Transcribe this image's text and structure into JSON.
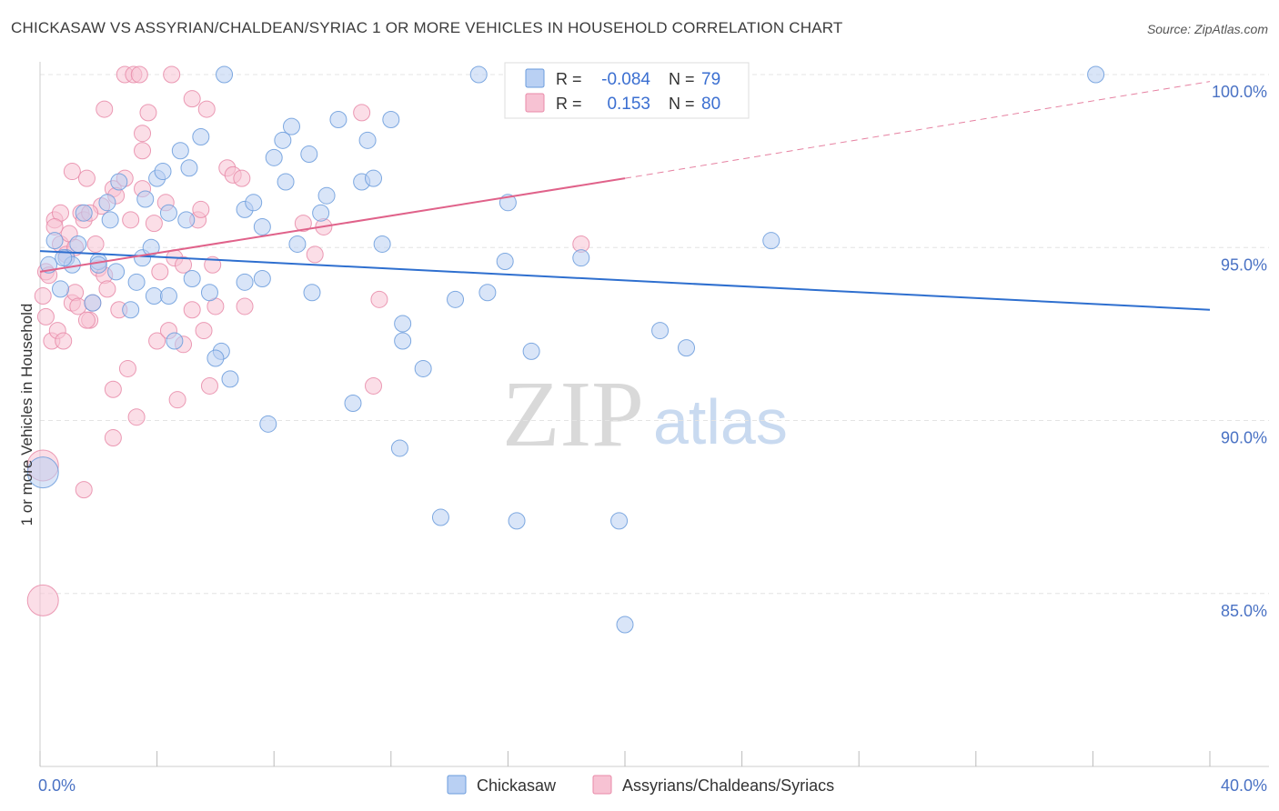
{
  "title": "CHICKASAW VS ASSYRIAN/CHALDEAN/SYRIAC 1 OR MORE VEHICLES IN HOUSEHOLD CORRELATION CHART",
  "source": "Source: ZipAtlas.com",
  "watermark": {
    "zip": "ZIP",
    "atlas": "atlas"
  },
  "legend_top": {
    "rows": [
      {
        "r_label": "R =",
        "r_value": "-0.084",
        "n_label": "N =",
        "n_value": "79",
        "color": "#6a9bdc",
        "fill": "#b9d0f3"
      },
      {
        "r_label": "R =",
        "r_value": "0.153",
        "n_label": "N =",
        "n_value": "80",
        "color": "#e88aa8",
        "fill": "#f7c2d3"
      }
    ]
  },
  "legend_bottom": {
    "items": [
      {
        "label": "Chickasaw",
        "color": "#6a9bdc",
        "fill": "#b9d0f3"
      },
      {
        "label": "Assyrians/Chaldeans/Syriacs",
        "color": "#e88aa8",
        "fill": "#f7c2d3"
      }
    ]
  },
  "chart_data": {
    "type": "scatter",
    "title": "CHICKASAW VS ASSYRIAN/CHALDEAN/SYRIAC 1 OR MORE VEHICLES IN HOUSEHOLD CORRELATION CHART",
    "xlabel": "",
    "ylabel": "1 or more Vehicles in Household",
    "xlim": [
      0,
      40
    ],
    "ylim": [
      80,
      100.5
    ],
    "x_tick_labels": [
      "0.0%",
      "40.0%"
    ],
    "y_ticks": [
      85,
      90,
      95,
      100
    ],
    "y_tick_labels": [
      "85.0%",
      "90.0%",
      "95.0%",
      "100.0%"
    ],
    "grid": true,
    "legend_position": "top-center",
    "series": [
      {
        "name": "Chickasaw",
        "color": "#6a9bdc",
        "fill": "#b9d0f3",
        "trend": {
          "x": [
            0,
            40
          ],
          "y": [
            94.9,
            93.2
          ],
          "color": "#2e6fcf"
        },
        "points": [
          [
            0.3,
            94.5
          ],
          [
            0.5,
            95.2
          ],
          [
            0.7,
            93.8
          ],
          [
            0.9,
            94.7
          ],
          [
            1.1,
            94.5
          ],
          [
            1.3,
            95.1
          ],
          [
            1.5,
            96.0
          ],
          [
            1.8,
            93.4
          ],
          [
            2.0,
            94.6
          ],
          [
            2.3,
            96.3
          ],
          [
            2.4,
            95.8
          ],
          [
            2.6,
            94.3
          ],
          [
            2.7,
            96.9
          ],
          [
            3.1,
            93.2
          ],
          [
            3.3,
            94.0
          ],
          [
            3.5,
            94.7
          ],
          [
            3.6,
            96.4
          ],
          [
            3.9,
            93.6
          ],
          [
            4.0,
            97.0
          ],
          [
            4.2,
            97.2
          ],
          [
            4.4,
            96.0
          ],
          [
            4.6,
            92.3
          ],
          [
            4.8,
            97.8
          ],
          [
            5.0,
            95.8
          ],
          [
            5.1,
            97.3
          ],
          [
            5.2,
            94.1
          ],
          [
            5.5,
            98.2
          ],
          [
            5.8,
            93.7
          ],
          [
            6.2,
            92.0
          ],
          [
            6.3,
            100.0
          ],
          [
            6.5,
            91.2
          ],
          [
            7.0,
            96.1
          ],
          [
            7.0,
            94.0
          ],
          [
            7.3,
            96.3
          ],
          [
            7.6,
            95.6
          ],
          [
            7.8,
            89.9
          ],
          [
            8.0,
            97.6
          ],
          [
            8.3,
            98.1
          ],
          [
            8.4,
            96.9
          ],
          [
            8.6,
            98.5
          ],
          [
            8.8,
            95.1
          ],
          [
            9.2,
            97.7
          ],
          [
            9.3,
            93.7
          ],
          [
            9.6,
            96.0
          ],
          [
            9.8,
            96.5
          ],
          [
            10.2,
            98.7
          ],
          [
            10.7,
            90.5
          ],
          [
            11.0,
            96.9
          ],
          [
            11.2,
            98.1
          ],
          [
            11.4,
            97.0
          ],
          [
            11.7,
            95.1
          ],
          [
            12.0,
            98.7
          ],
          [
            12.3,
            89.2
          ],
          [
            12.4,
            92.8
          ],
          [
            12.4,
            92.3
          ],
          [
            13.1,
            91.5
          ],
          [
            13.7,
            87.2
          ],
          [
            14.2,
            93.5
          ],
          [
            15.0,
            100.0
          ],
          [
            15.3,
            93.7
          ],
          [
            15.9,
            94.6
          ],
          [
            16.0,
            96.3
          ],
          [
            16.3,
            87.1
          ],
          [
            16.8,
            92.0
          ],
          [
            18.5,
            94.7
          ],
          [
            18.5,
            100.0
          ],
          [
            19.8,
            87.1
          ],
          [
            20.0,
            84.1
          ],
          [
            21.2,
            92.6
          ],
          [
            22.1,
            92.1
          ],
          [
            25.0,
            95.2
          ],
          [
            36.1,
            100.0
          ],
          [
            0.1,
            88.5
          ],
          [
            6.0,
            91.8
          ],
          [
            4.4,
            93.6
          ],
          [
            7.6,
            94.1
          ],
          [
            3.8,
            95.0
          ],
          [
            2.0,
            94.5
          ],
          [
            0.8,
            94.7
          ]
        ]
      },
      {
        "name": "Assyrians/Chaldeans/Syriacs",
        "color": "#e88aa8",
        "fill": "#f7c2d3",
        "trend": {
          "x": [
            0,
            20
          ],
          "y": [
            94.3,
            97.0
          ],
          "color": "#e0628a",
          "dashed_extension": {
            "x": [
              20,
              40
            ],
            "y": [
              97.0,
              99.8
            ]
          }
        },
        "points": [
          [
            0.1,
            93.6
          ],
          [
            0.2,
            94.3
          ],
          [
            0.2,
            93.0
          ],
          [
            0.4,
            92.3
          ],
          [
            0.5,
            95.8
          ],
          [
            0.6,
            92.6
          ],
          [
            0.7,
            95.1
          ],
          [
            0.8,
            92.3
          ],
          [
            0.9,
            94.8
          ],
          [
            1.0,
            95.4
          ],
          [
            1.1,
            97.2
          ],
          [
            1.1,
            93.4
          ],
          [
            1.2,
            93.7
          ],
          [
            1.3,
            93.3
          ],
          [
            1.4,
            96.0
          ],
          [
            1.5,
            95.8
          ],
          [
            1.6,
            97.0
          ],
          [
            1.7,
            92.9
          ],
          [
            1.8,
            93.4
          ],
          [
            1.9,
            95.1
          ],
          [
            2.0,
            94.4
          ],
          [
            2.1,
            96.2
          ],
          [
            2.2,
            94.2
          ],
          [
            2.3,
            93.8
          ],
          [
            2.5,
            96.7
          ],
          [
            2.6,
            96.5
          ],
          [
            2.7,
            93.2
          ],
          [
            2.9,
            97.0
          ],
          [
            3.0,
            91.5
          ],
          [
            3.1,
            95.8
          ],
          [
            3.3,
            90.1
          ],
          [
            3.5,
            96.7
          ],
          [
            3.7,
            98.9
          ],
          [
            3.9,
            95.7
          ],
          [
            4.0,
            92.3
          ],
          [
            4.1,
            94.3
          ],
          [
            4.3,
            96.3
          ],
          [
            4.4,
            92.6
          ],
          [
            4.6,
            94.7
          ],
          [
            4.7,
            90.6
          ],
          [
            4.9,
            92.2
          ],
          [
            5.2,
            93.2
          ],
          [
            5.4,
            95.8
          ],
          [
            5.5,
            96.1
          ],
          [
            5.6,
            92.6
          ],
          [
            5.7,
            99.0
          ],
          [
            5.8,
            91.0
          ],
          [
            5.9,
            94.5
          ],
          [
            6.0,
            93.3
          ],
          [
            6.4,
            97.3
          ],
          [
            6.6,
            97.1
          ],
          [
            6.9,
            97.0
          ],
          [
            7.0,
            93.3
          ],
          [
            9.0,
            95.7
          ],
          [
            9.4,
            94.8
          ],
          [
            9.7,
            95.6
          ],
          [
            11.0,
            98.9
          ],
          [
            11.4,
            91.0
          ],
          [
            11.6,
            93.5
          ],
          [
            18.5,
            95.1
          ],
          [
            2.5,
            89.5
          ],
          [
            2.5,
            90.9
          ],
          [
            1.5,
            88.0
          ],
          [
            0.1,
            88.7
          ],
          [
            0.1,
            84.8
          ],
          [
            2.2,
            99.0
          ],
          [
            2.9,
            100.0
          ],
          [
            3.2,
            100.0
          ],
          [
            3.4,
            100.0
          ],
          [
            4.5,
            100.0
          ],
          [
            3.5,
            98.3
          ],
          [
            3.5,
            97.8
          ],
          [
            1.6,
            92.9
          ],
          [
            1.7,
            96.0
          ],
          [
            5.2,
            99.3
          ],
          [
            4.9,
            94.5
          ],
          [
            0.7,
            96.0
          ],
          [
            0.3,
            94.2
          ],
          [
            1.2,
            95.0
          ],
          [
            0.5,
            95.6
          ]
        ]
      }
    ]
  }
}
